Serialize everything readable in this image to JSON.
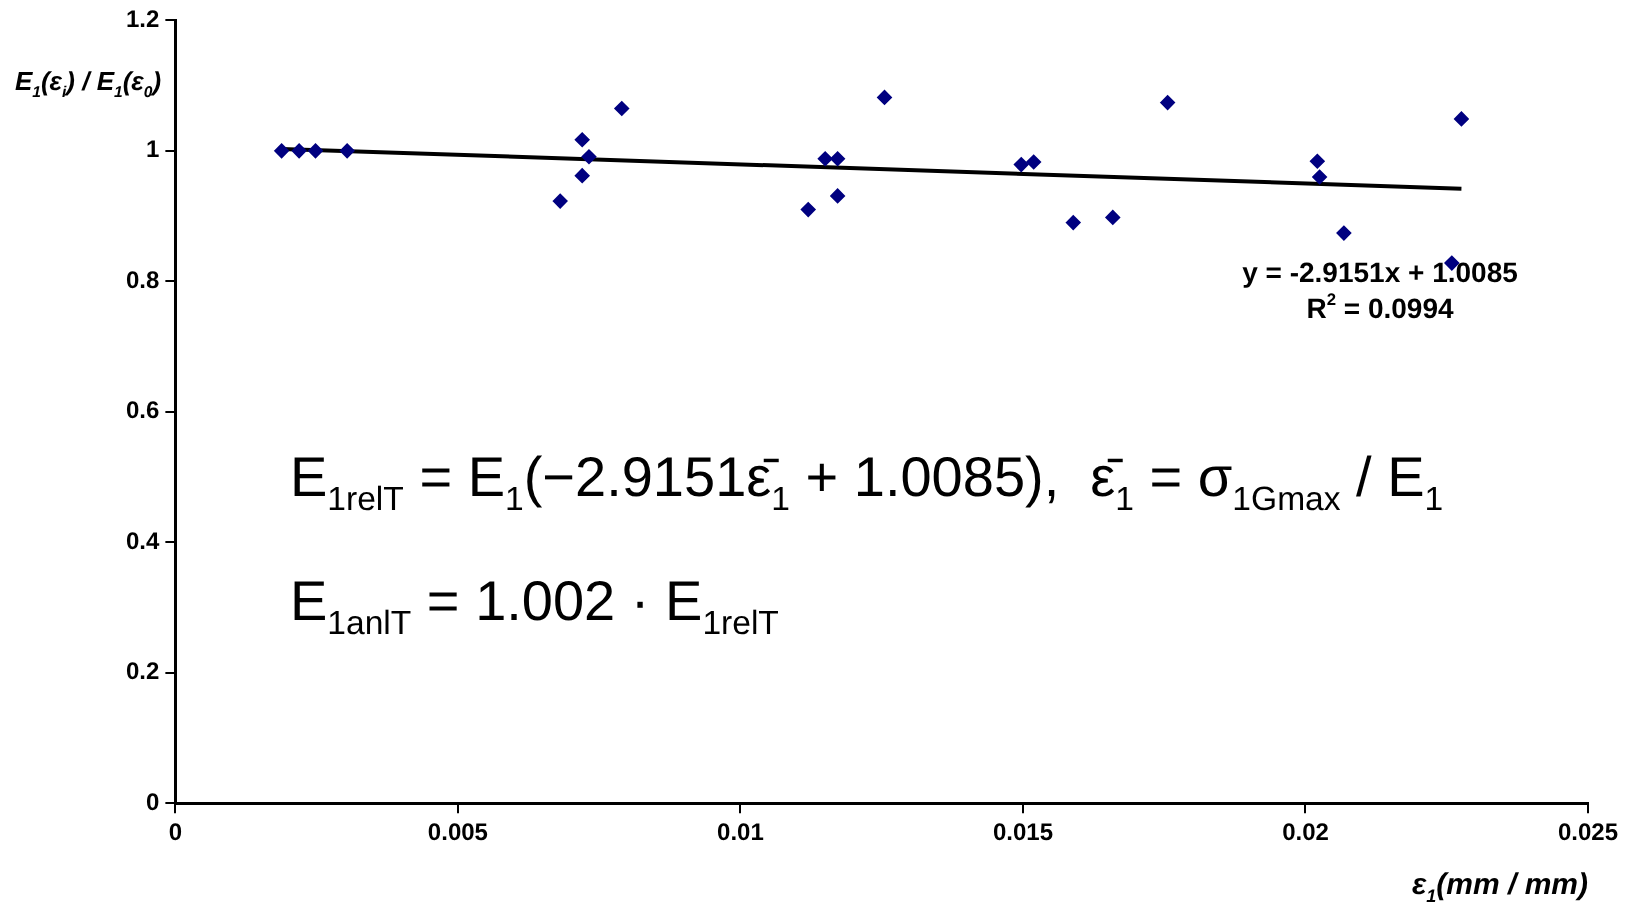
{
  "chart_data": {
    "type": "scatter",
    "ylabel": "E$_{1}$(ε$_{i}$) / E$_{1}$(ε$_{0}$)",
    "xlabel": "ε$_{1}$(mm / mm)",
    "xlim": [
      0,
      0.025
    ],
    "xticks": [
      0,
      0.005,
      0.01,
      0.015,
      0.02,
      0.025
    ],
    "ylim": [
      0,
      1.2
    ],
    "yticks": [
      0,
      0.2,
      0.4,
      0.6,
      0.8,
      1,
      1.2
    ],
    "grid": false,
    "legend": false,
    "marker": "diamond",
    "series": [
      {
        "color": "#000080",
        "x": [
          0.00188,
          0.00219,
          0.00248,
          0.00304,
          0.00681,
          0.0072,
          0.0072,
          0.00732,
          0.0079,
          0.0112,
          0.0115,
          0.01172,
          0.01172,
          0.01255,
          0.01497,
          0.01519,
          0.01589,
          0.01659,
          0.01756,
          0.02021,
          0.02025,
          0.02068,
          0.02259,
          0.02276
        ],
        "values": [
          1,
          1,
          1,
          1,
          0.923,
          1.017,
          0.962,
          0.991,
          1.065,
          0.91,
          0.988,
          0.988,
          0.931,
          1.082,
          0.979,
          0.983,
          0.89,
          0.898,
          1.074,
          0.984,
          0.96,
          0.874,
          0.828,
          1.049
        ]
      },
      {
        "type": "line",
        "color": "#000000",
        "marker": "none",
        "x": [
          0.00188,
          0.02276
        ],
        "values": [
          1.003,
          0.942
        ]
      }
    ],
    "annotations": [
      "y = -2.9151x + 1.0085",
      "R$^{2}$ = 0.0994",
      "E$_{1relT}$ = E$_{1}$(−2.9151ε̄$_{1}$ + 1.0085),  ε̄$_{1}$ = σ$_{1Gmax}$ / E$_{1}$",
      "E$_{1anlT}$ = 1.002 · E$_{1relT}$"
    ]
  }
}
